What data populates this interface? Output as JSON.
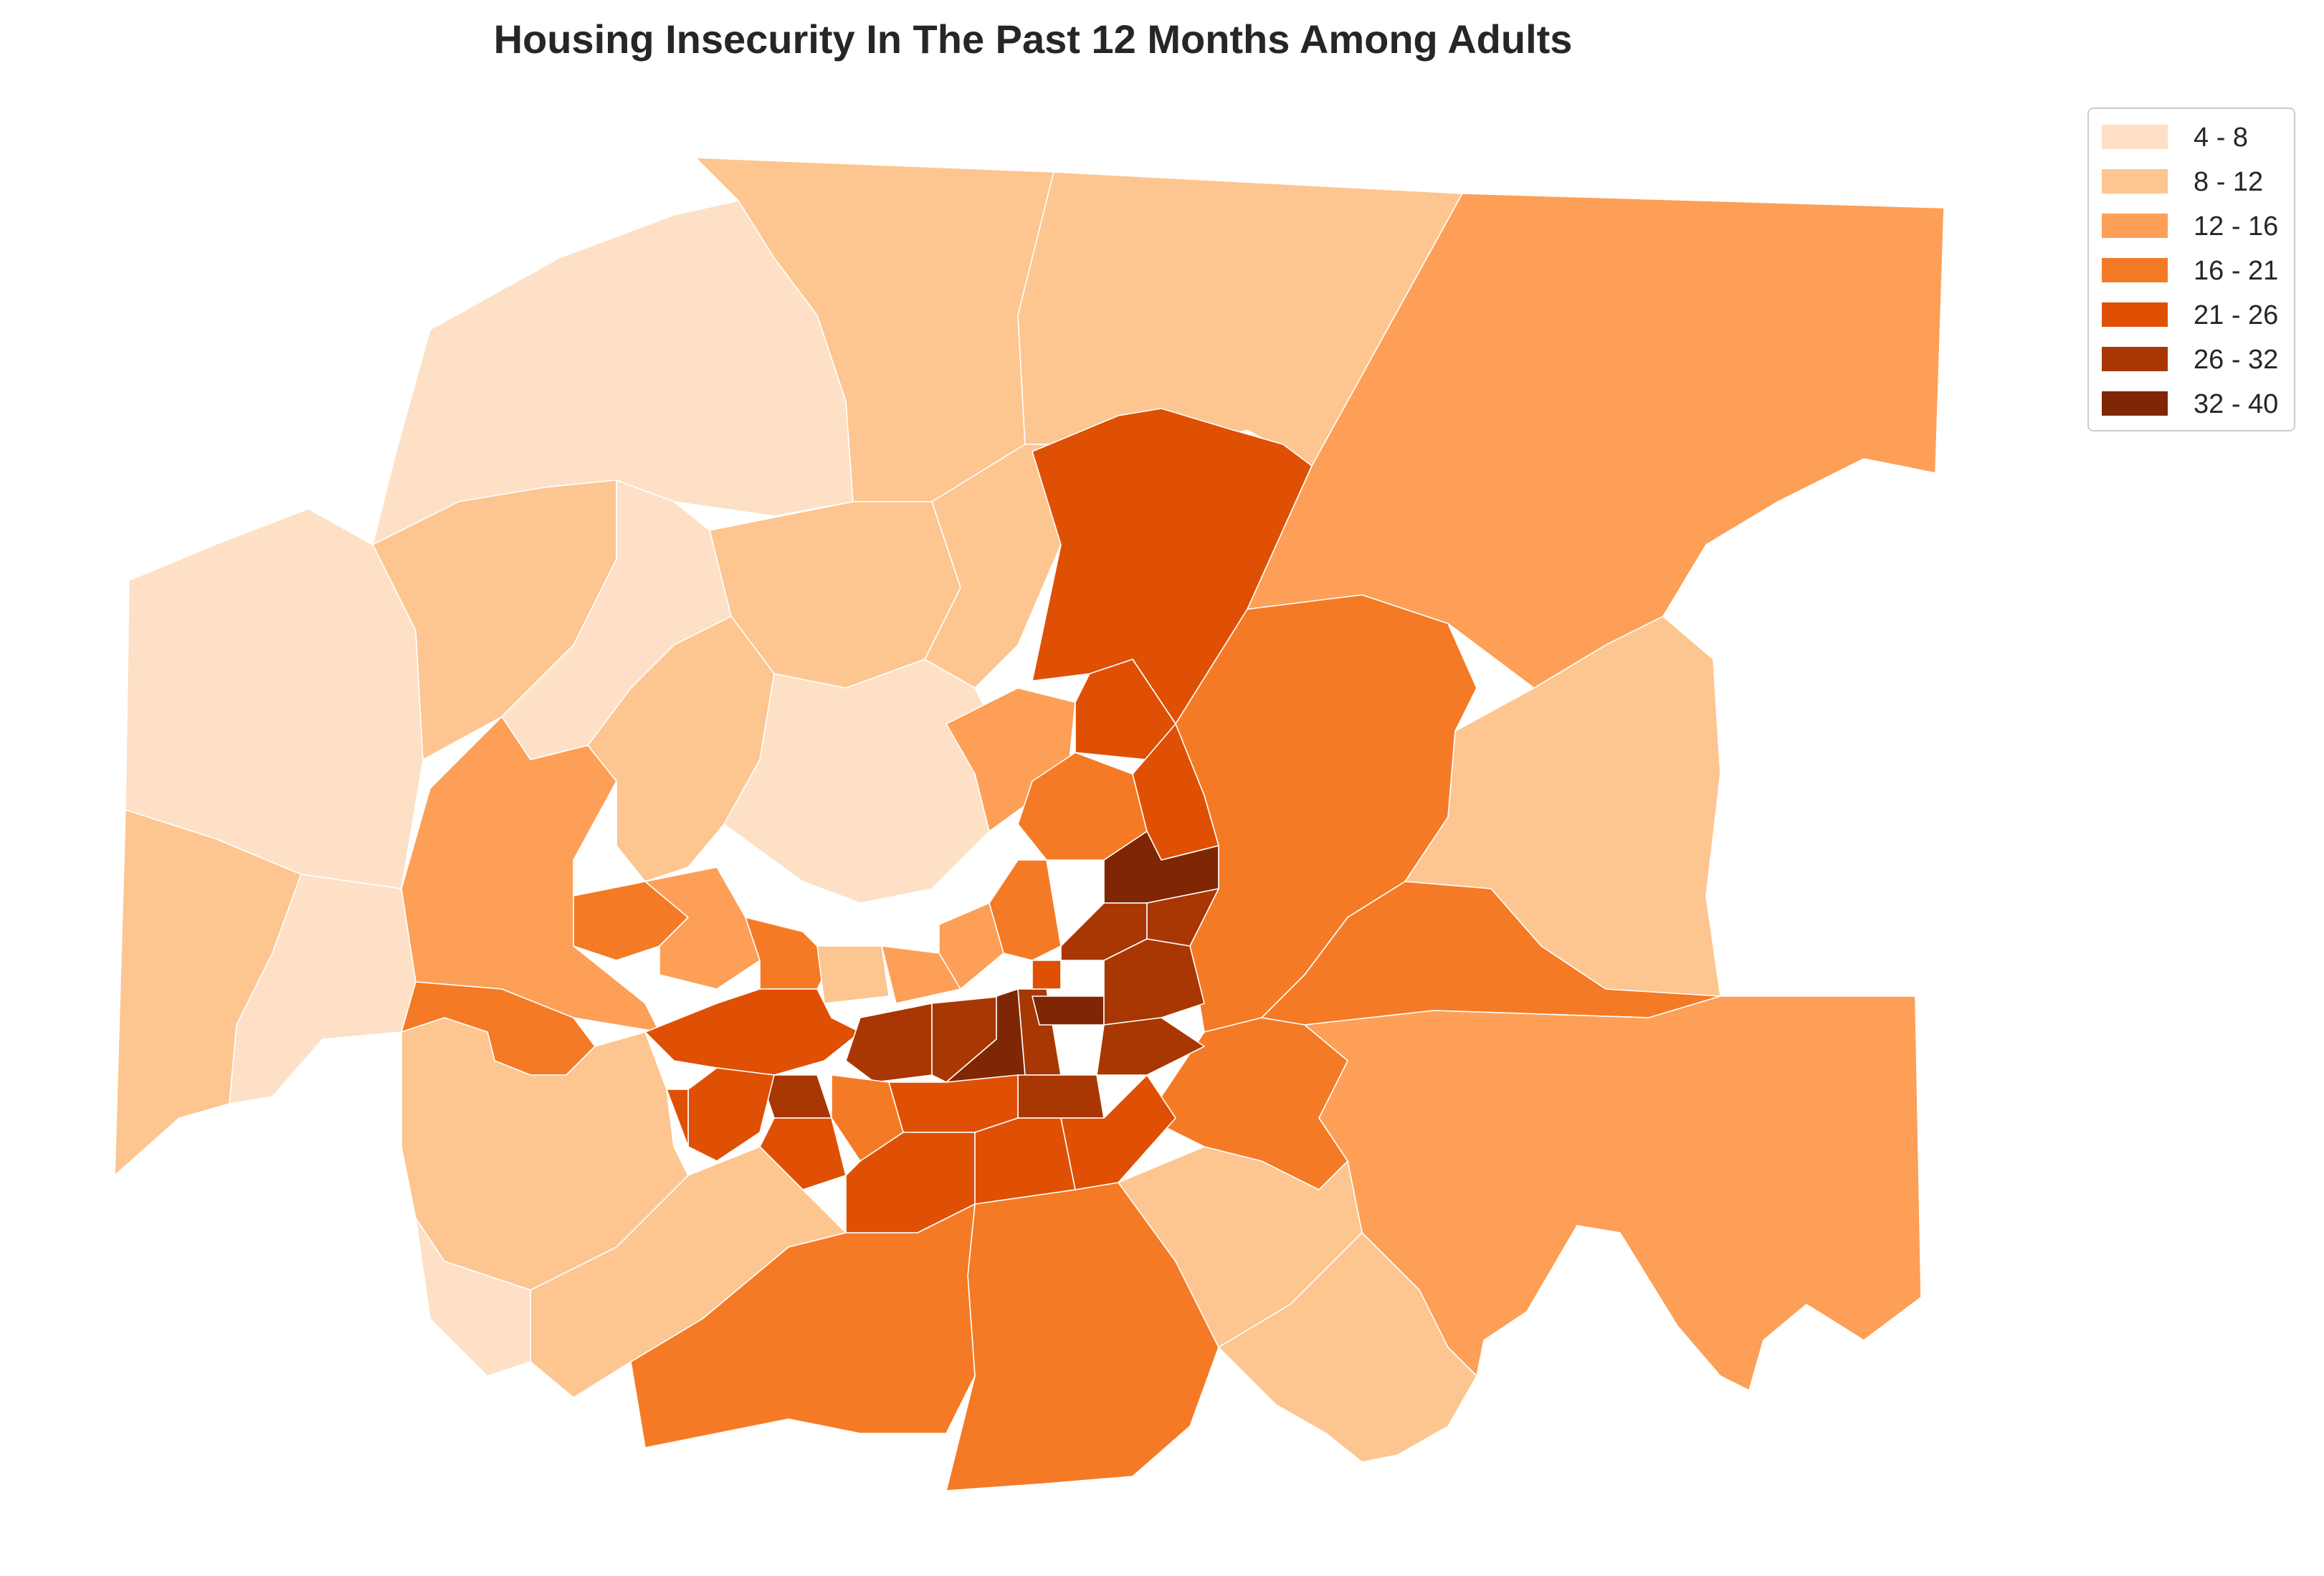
{
  "title": "Housing Insecurity In The Past 12 Months Among Adults",
  "legend": {
    "items": [
      {
        "label": "4 - 8",
        "color": "#fde0c5"
      },
      {
        "label": "8 - 12",
        "color": "#fdc590"
      },
      {
        "label": "12 - 16",
        "color": "#fd9f56"
      },
      {
        "label": "16 - 21",
        "color": "#f57a25"
      },
      {
        "label": "21 - 26",
        "color": "#df5005"
      },
      {
        "label": "26 - 32",
        "color": "#a83703"
      },
      {
        "label": "32 - 40",
        "color": "#7f2704"
      }
    ]
  },
  "chart_data": {
    "type": "choropleth",
    "title": "Housing Insecurity In The Past 12 Months Among Adults",
    "classes": [
      {
        "range": [
          4,
          8
        ],
        "label": "4 - 8"
      },
      {
        "range": [
          8,
          12
        ],
        "label": "8 - 12"
      },
      {
        "range": [
          12,
          16
        ],
        "label": "12 - 16"
      },
      {
        "range": [
          16,
          21
        ],
        "label": "16 - 21"
      },
      {
        "range": [
          21,
          26
        ],
        "label": "21 - 26"
      },
      {
        "range": [
          26,
          32
        ],
        "label": "26 - 32"
      },
      {
        "range": [
          32,
          40
        ],
        "label": "32 - 40"
      }
    ],
    "legend_position": "top-right",
    "spatial_pattern": "highest values in the central urban core, decreasing toward the northwest and outer areas"
  }
}
